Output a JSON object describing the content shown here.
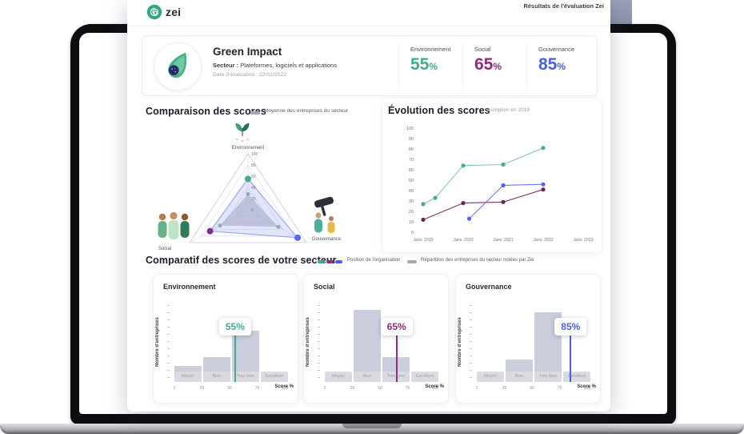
{
  "header": {
    "logo_text": "zei",
    "results_title": "Résultats de l'évaluation Zei"
  },
  "company": {
    "name": "Green Impact",
    "sector_label": "Secteur :",
    "sector": "Plateformes, logiciels et applications",
    "date_label": "Date d'évaluation :",
    "date": "22/02/2022",
    "scores": [
      {
        "label": "Environnement",
        "value": "55",
        "unit": "%",
        "color": "#44ab8d"
      },
      {
        "label": "Social",
        "value": "65",
        "unit": "%",
        "color": "#8e2d7d"
      },
      {
        "label": "Gouvernance",
        "value": "85",
        "unit": "%",
        "color": "#4a5fe5"
      }
    ]
  },
  "comparison": {
    "title": "Comparaison des scores",
    "legend": "Moyenne des entreprises du secteur",
    "chart_data": {
      "type": "radar",
      "axes": [
        "Environnement",
        "Social",
        "Gouvernance"
      ],
      "max": 100,
      "ticks": [
        100,
        80,
        60,
        40,
        20,
        0
      ],
      "series": [
        {
          "name": "Position de l'organisation",
          "values": [
            55,
            65,
            85
          ],
          "fill": "rgba(168,178,242,0.32)",
          "stroke": "rgba(133,148,235,0.85)",
          "dot_colors": [
            "#44ab8d",
            "#7d2f8f",
            "#5566ea"
          ]
        },
        {
          "name": "Moyenne des entreprises du secteur",
          "values": [
            28,
            48,
            52
          ],
          "fill": "rgba(152,152,165,0.5)",
          "stroke": "none",
          "dot_colors": [
            "#9b9ba8",
            "#9b9ba8",
            "#9b9ba8"
          ]
        }
      ]
    }
  },
  "evolution": {
    "title": "Évolution des scores",
    "subtitle": "Inscription en 2019",
    "chart_data": {
      "type": "line",
      "x_labels": [
        "Janv. 2019",
        "Janv. 2020",
        "Janv. 2021",
        "Janv. 2022",
        "Janv. 2023"
      ],
      "yticks": [
        100,
        90,
        80,
        70,
        60,
        50,
        40,
        30,
        20,
        10,
        0
      ],
      "ylim": [
        0,
        100
      ],
      "series": [
        {
          "name": "Environnement",
          "line_color": "#86c7ae",
          "dot_color": "#4da98c",
          "points": [
            [
              2019,
              27
            ],
            [
              2019.3,
              33
            ],
            [
              2020,
              64
            ],
            [
              2021,
              65
            ],
            [
              2022,
              81
            ]
          ]
        },
        {
          "name": "Social",
          "line_color": "#7d3265",
          "dot_color": "#652a52",
          "points": [
            [
              2019,
              12
            ],
            [
              2020,
              28
            ],
            [
              2021,
              29
            ],
            [
              2022,
              41
            ]
          ]
        },
        {
          "name": "Gouvernance",
          "line_color": "#6b7bf0",
          "dot_color": "#5563e8",
          "points": [
            [
              2020.15,
              13
            ],
            [
              2021,
              45
            ],
            [
              2022,
              46
            ]
          ]
        }
      ]
    }
  },
  "sector_comparison": {
    "title": "Comparatif des scores de votre secteur",
    "legend_org": "Position de l'organisation",
    "legend_sector": "Répartition des entreprises du secteur notées par Zei",
    "xlabel": "Score %",
    "ylabel": "Nombre d'entreprises",
    "x_ticks": [
      "1",
      "25",
      "50",
      "75",
      "100"
    ],
    "categories": [
      "Moyen",
      "Bien",
      "Très bien",
      "Excellent"
    ],
    "charts": [
      {
        "title": "Environnement",
        "score": 55,
        "score_label": "55%",
        "color": "#44ab8d",
        "type": "bar",
        "bars": [
          0.21,
          0.33,
          0.67,
          0.09
        ]
      },
      {
        "title": "Social",
        "score": 65,
        "score_label": "65%",
        "color": "#8e2d7d",
        "type": "bar",
        "bars": [
          0.11,
          0.95,
          0.33,
          0.06
        ]
      },
      {
        "title": "Gouvernance",
        "score": 85,
        "score_label": "85%",
        "color": "#4a5fe5",
        "type": "bar",
        "bars": [
          0.11,
          0.29,
          0.92,
          0.1
        ]
      }
    ]
  }
}
